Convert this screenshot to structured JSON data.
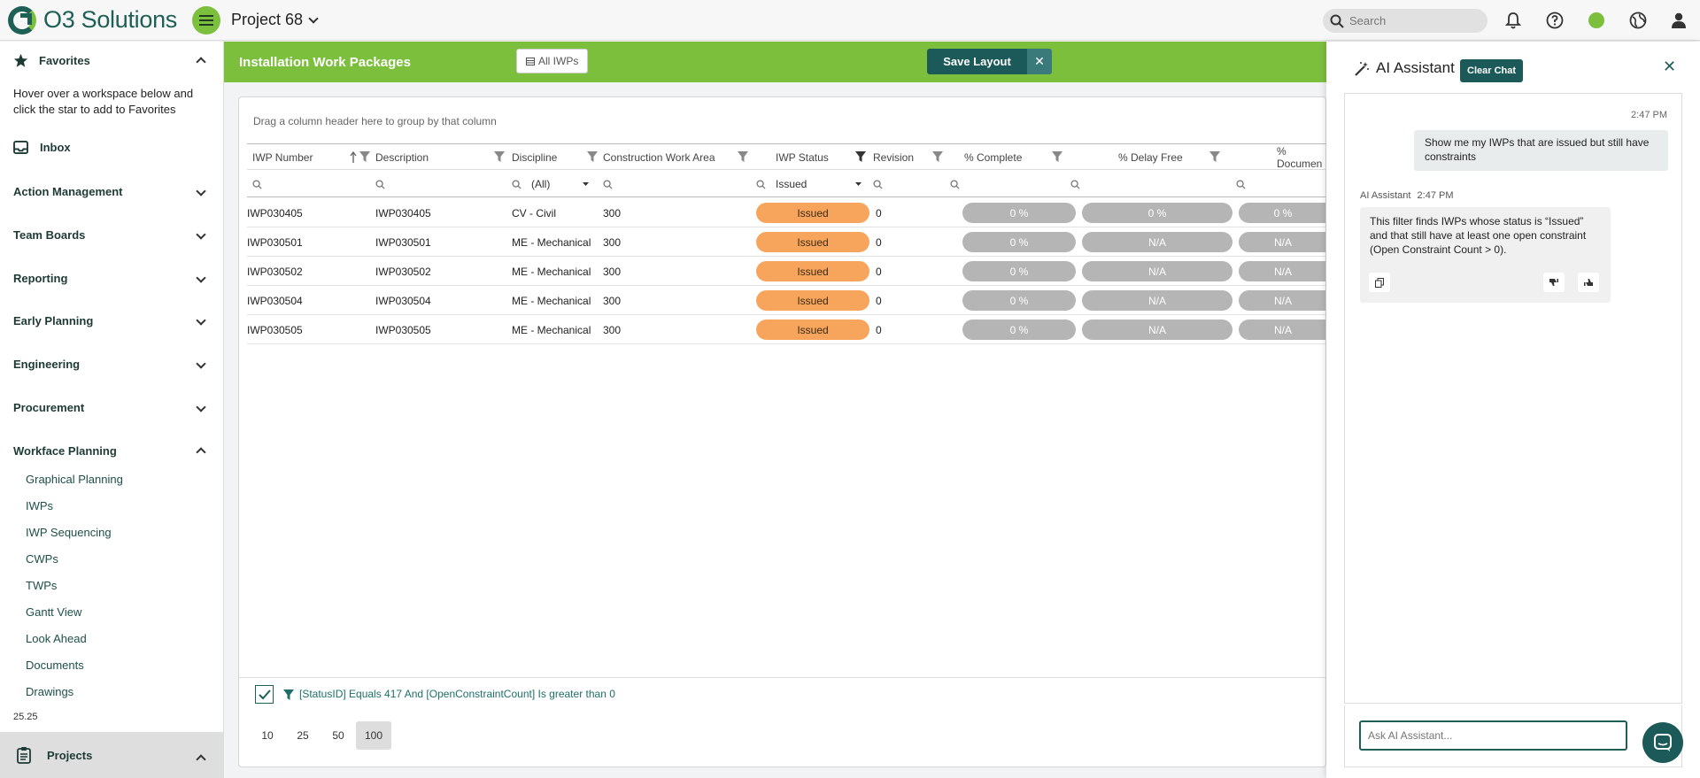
{
  "app": {
    "brand": "O3 Solutions",
    "project": "Project 68",
    "search_placeholder": "Search",
    "status_color": "#7cbf3d",
    "accent": "#1b5a58"
  },
  "sidebar": {
    "favorites": "Favorites",
    "favorites_note": "Hover over a workspace below and click the star to add to Favorites",
    "inbox": "Inbox",
    "sections": [
      "Action Management",
      "Team Boards",
      "Reporting",
      "Early Planning",
      "Engineering",
      "Procurement",
      "Workface Planning"
    ],
    "workface_items": [
      "Graphical Planning",
      "IWPs",
      "IWP Sequencing",
      "CWPs",
      "TWPs",
      "Gantt View",
      "Look Ahead",
      "Documents",
      "Drawings"
    ],
    "version": "25.25",
    "projects": "Projects"
  },
  "main": {
    "title": "Installation Work Packages",
    "all_iwps": "All IWPs",
    "save_layout": "Save Layout",
    "group_hint": "Drag a column header here to group by that column",
    "columns": [
      "IWP Number",
      "Description",
      "Discipline",
      "Construction Work Area",
      "IWP Status",
      "Revision",
      "% Complete",
      "% Delay Free",
      "% Documen"
    ],
    "filters": {
      "discipline": "(All)",
      "status": "Issued"
    },
    "rows": [
      {
        "iwp": "IWP030405",
        "desc": "IWP030405",
        "disc": "CV - Civil",
        "cwa": "300",
        "status": "Issued",
        "rev": "0",
        "complete": "0 %",
        "delay": "0 %",
        "docs": "0 %"
      },
      {
        "iwp": "IWP030501",
        "desc": "IWP030501",
        "disc": "ME - Mechanical",
        "cwa": "300",
        "status": "Issued",
        "rev": "0",
        "complete": "0 %",
        "delay": "N/A",
        "docs": "N/A"
      },
      {
        "iwp": "IWP030502",
        "desc": "IWP030502",
        "disc": "ME - Mechanical",
        "cwa": "300",
        "status": "Issued",
        "rev": "0",
        "complete": "0 %",
        "delay": "N/A",
        "docs": "N/A"
      },
      {
        "iwp": "IWP030504",
        "desc": "IWP030504",
        "disc": "ME - Mechanical",
        "cwa": "300",
        "status": "Issued",
        "rev": "0",
        "complete": "0 %",
        "delay": "N/A",
        "docs": "N/A"
      },
      {
        "iwp": "IWP030505",
        "desc": "IWP030505",
        "disc": "ME - Mechanical",
        "cwa": "300",
        "status": "Issued",
        "rev": "0",
        "complete": "0 %",
        "delay": "N/A",
        "docs": "N/A"
      }
    ],
    "filter_expression": "[StatusID] Equals 417 And [OpenConstraintCount] Is greater than 0",
    "page_sizes": [
      "10",
      "25",
      "50",
      "100"
    ],
    "selected_page_size": "100"
  },
  "ai": {
    "title": "AI Assistant",
    "clear_chat": "Clear Chat",
    "user_time": "2:47 PM",
    "user_message": "Show me my IWPs that are issued but still have constraints",
    "assistant_label": "AI Assistant",
    "assistant_time": "2:47 PM",
    "assistant_message": "This filter finds IWPs whose status is “Issued” and that still have at least one open constraint (Open Constraint Count > 0).",
    "input_placeholder": "Ask AI Assistant..."
  }
}
